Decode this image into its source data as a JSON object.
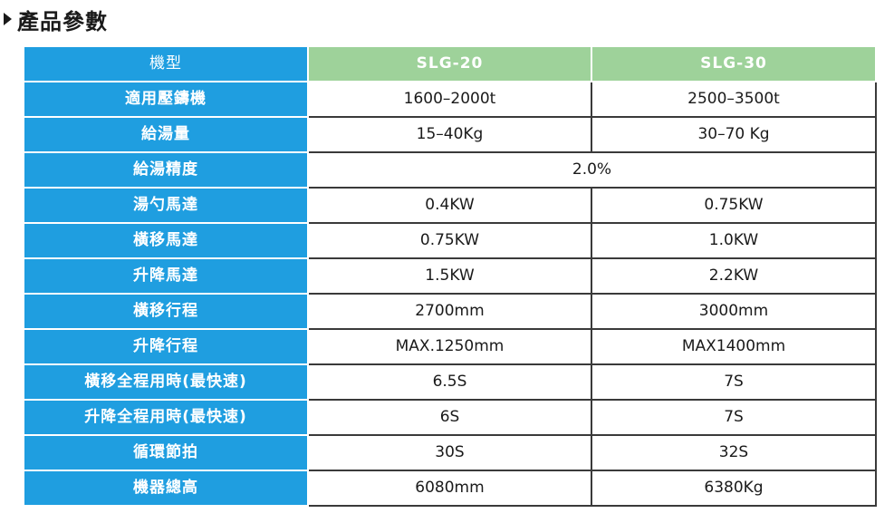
{
  "heading": {
    "title": "產品參數"
  },
  "table": {
    "header": {
      "label": "機型",
      "models": [
        "SLG-20",
        "SLG-30"
      ]
    },
    "rows": [
      {
        "label": "適用壓鑄機",
        "a": "1600–2000t",
        "b": "2500–3500t"
      },
      {
        "label": "給湯量",
        "a": "15–40Kg",
        "b": "30–70 Kg"
      },
      {
        "label": "給湯精度",
        "merged": "2.0%"
      },
      {
        "label": "湯勺馬達",
        "a": "0.4KW",
        "b": "0.75KW"
      },
      {
        "label": "橫移馬達",
        "a": "0.75KW",
        "b": "1.0KW"
      },
      {
        "label": "升降馬達",
        "a": "1.5KW",
        "b": "2.2KW"
      },
      {
        "label": "橫移行程",
        "a": "2700mm",
        "b": "3000mm"
      },
      {
        "label": "升降行程",
        "a": "MAX.1250mm",
        "b": "MAX1400mm"
      },
      {
        "label": "橫移全程用時(最快速)",
        "a": "6.5S",
        "b": "7S"
      },
      {
        "label": "升降全程用時(最快速)",
        "a": "6S",
        "b": "7S"
      },
      {
        "label": "循環節拍",
        "a": "30S",
        "b": "32S"
      },
      {
        "label": "機器總高",
        "a": "6080mm",
        "b": "6380Kg"
      }
    ]
  },
  "colors": {
    "label_bg": "#1f9ee0",
    "model_header_bg": "#9ed29a",
    "text": "#1a1a1a"
  }
}
